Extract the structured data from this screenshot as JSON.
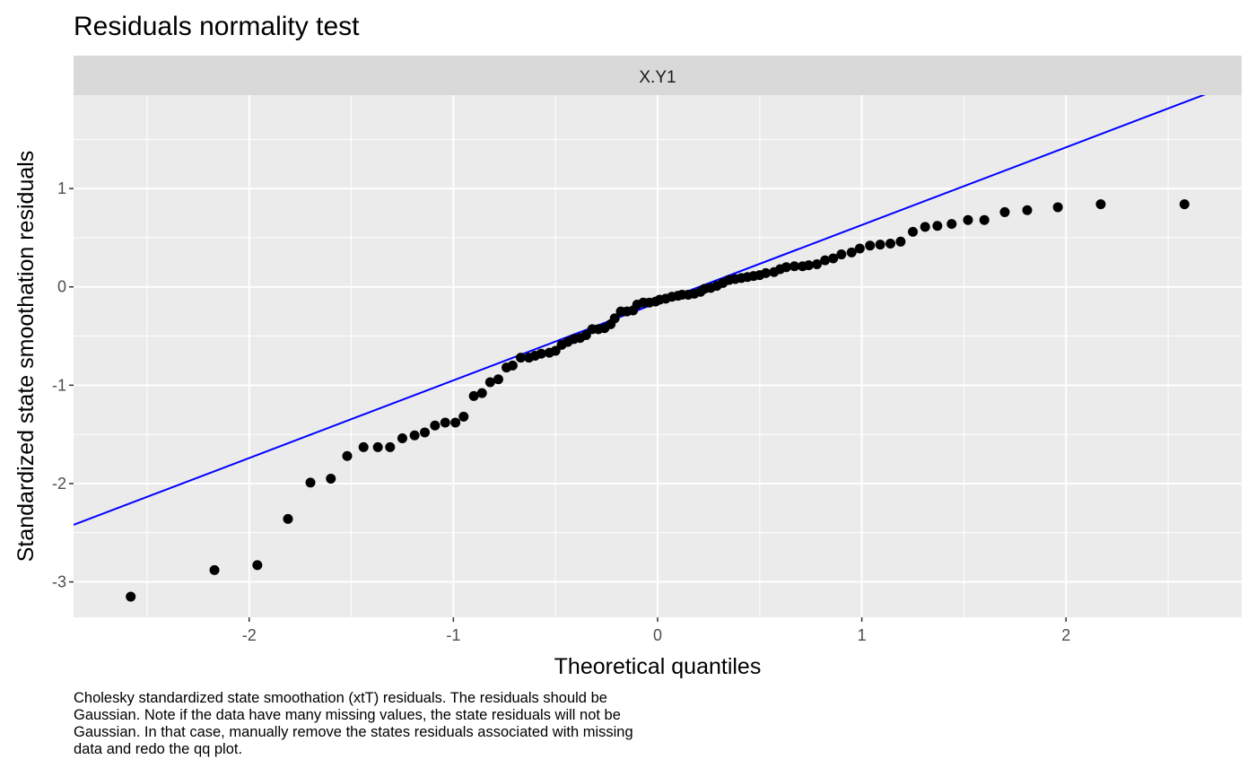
{
  "chart_data": {
    "type": "scatter",
    "title": "Residuals normality test",
    "facet_label": "X.Y1",
    "xlabel": "Theoretical quantiles",
    "ylabel": "Standardized state smoothation residuals",
    "caption": "Cholesky standardized state smoothation (xtT) residuals. The residuals should be Gaussian. Note if the data have many missing values, the state residuals will not be Gaussian. In that case, manually remove the states residuals associated with missing data and redo the qq plot.",
    "xlim": [
      -2.86,
      2.86
    ],
    "ylim": [
      -3.36,
      1.95
    ],
    "x_ticks": [
      -2,
      -1,
      0,
      1,
      2
    ],
    "x_tick_labels": [
      "-2",
      "-1",
      "0",
      "1",
      "2"
    ],
    "y_ticks": [
      -3,
      -2,
      -1,
      0,
      1
    ],
    "y_tick_labels": [
      "-3",
      "-2",
      "-1",
      "0",
      "1"
    ],
    "grid": true,
    "point_color": "#000000",
    "line_color": "#0000ff",
    "panel_background": "#ebebeb",
    "strip_background": "#d9d9d9",
    "reference_line": {
      "x1": -2.86,
      "y1": -2.42,
      "x2": 2.71,
      "y2": 1.98
    },
    "points": [
      {
        "x": -2.58,
        "y": -3.15
      },
      {
        "x": -2.17,
        "y": -2.88
      },
      {
        "x": -1.96,
        "y": -2.83
      },
      {
        "x": -1.81,
        "y": -2.36
      },
      {
        "x": -1.7,
        "y": -1.99
      },
      {
        "x": -1.6,
        "y": -1.95
      },
      {
        "x": -1.52,
        "y": -1.72
      },
      {
        "x": -1.44,
        "y": -1.63
      },
      {
        "x": -1.37,
        "y": -1.63
      },
      {
        "x": -1.31,
        "y": -1.63
      },
      {
        "x": -1.25,
        "y": -1.54
      },
      {
        "x": -1.19,
        "y": -1.51
      },
      {
        "x": -1.14,
        "y": -1.48
      },
      {
        "x": -1.09,
        "y": -1.41
      },
      {
        "x": -1.04,
        "y": -1.38
      },
      {
        "x": -0.99,
        "y": -1.38
      },
      {
        "x": -0.95,
        "y": -1.32
      },
      {
        "x": -0.9,
        "y": -1.11
      },
      {
        "x": -0.86,
        "y": -1.08
      },
      {
        "x": -0.82,
        "y": -0.97
      },
      {
        "x": -0.78,
        "y": -0.94
      },
      {
        "x": -0.74,
        "y": -0.82
      },
      {
        "x": -0.71,
        "y": -0.8
      },
      {
        "x": -0.67,
        "y": -0.72
      },
      {
        "x": -0.63,
        "y": -0.72
      },
      {
        "x": -0.6,
        "y": -0.7
      },
      {
        "x": -0.57,
        "y": -0.68
      },
      {
        "x": -0.53,
        "y": -0.67
      },
      {
        "x": -0.5,
        "y": -0.65
      },
      {
        "x": -0.47,
        "y": -0.59
      },
      {
        "x": -0.44,
        "y": -0.56
      },
      {
        "x": -0.41,
        "y": -0.53
      },
      {
        "x": -0.38,
        "y": -0.52
      },
      {
        "x": -0.35,
        "y": -0.49
      },
      {
        "x": -0.32,
        "y": -0.43
      },
      {
        "x": -0.29,
        "y": -0.43
      },
      {
        "x": -0.26,
        "y": -0.42
      },
      {
        "x": -0.23,
        "y": -0.38
      },
      {
        "x": -0.21,
        "y": -0.32
      },
      {
        "x": -0.18,
        "y": -0.25
      },
      {
        "x": -0.15,
        "y": -0.25
      },
      {
        "x": -0.12,
        "y": -0.24
      },
      {
        "x": -0.1,
        "y": -0.18
      },
      {
        "x": -0.07,
        "y": -0.16
      },
      {
        "x": -0.04,
        "y": -0.16
      },
      {
        "x": -0.01,
        "y": -0.15
      },
      {
        "x": 0.01,
        "y": -0.13
      },
      {
        "x": 0.04,
        "y": -0.12
      },
      {
        "x": 0.07,
        "y": -0.1
      },
      {
        "x": 0.1,
        "y": -0.09
      },
      {
        "x": 0.12,
        "y": -0.08
      },
      {
        "x": 0.15,
        "y": -0.08
      },
      {
        "x": 0.18,
        "y": -0.07
      },
      {
        "x": 0.21,
        "y": -0.05
      },
      {
        "x": 0.23,
        "y": -0.02
      },
      {
        "x": 0.26,
        "y": -0.01
      },
      {
        "x": 0.29,
        "y": 0.01
      },
      {
        "x": 0.32,
        "y": 0.04
      },
      {
        "x": 0.35,
        "y": 0.07
      },
      {
        "x": 0.38,
        "y": 0.08
      },
      {
        "x": 0.41,
        "y": 0.09
      },
      {
        "x": 0.44,
        "y": 0.1
      },
      {
        "x": 0.47,
        "y": 0.11
      },
      {
        "x": 0.5,
        "y": 0.12
      },
      {
        "x": 0.53,
        "y": 0.14
      },
      {
        "x": 0.57,
        "y": 0.15
      },
      {
        "x": 0.6,
        "y": 0.18
      },
      {
        "x": 0.63,
        "y": 0.2
      },
      {
        "x": 0.67,
        "y": 0.21
      },
      {
        "x": 0.71,
        "y": 0.21
      },
      {
        "x": 0.74,
        "y": 0.22
      },
      {
        "x": 0.78,
        "y": 0.23
      },
      {
        "x": 0.82,
        "y": 0.27
      },
      {
        "x": 0.86,
        "y": 0.29
      },
      {
        "x": 0.9,
        "y": 0.33
      },
      {
        "x": 0.95,
        "y": 0.35
      },
      {
        "x": 0.99,
        "y": 0.39
      },
      {
        "x": 1.04,
        "y": 0.42
      },
      {
        "x": 1.09,
        "y": 0.43
      },
      {
        "x": 1.14,
        "y": 0.44
      },
      {
        "x": 1.19,
        "y": 0.46
      },
      {
        "x": 1.25,
        "y": 0.56
      },
      {
        "x": 1.31,
        "y": 0.61
      },
      {
        "x": 1.37,
        "y": 0.62
      },
      {
        "x": 1.44,
        "y": 0.64
      },
      {
        "x": 1.52,
        "y": 0.68
      },
      {
        "x": 1.6,
        "y": 0.68
      },
      {
        "x": 1.7,
        "y": 0.76
      },
      {
        "x": 1.81,
        "y": 0.78
      },
      {
        "x": 1.96,
        "y": 0.81
      },
      {
        "x": 2.17,
        "y": 0.84
      },
      {
        "x": 2.58,
        "y": 0.84
      }
    ]
  }
}
